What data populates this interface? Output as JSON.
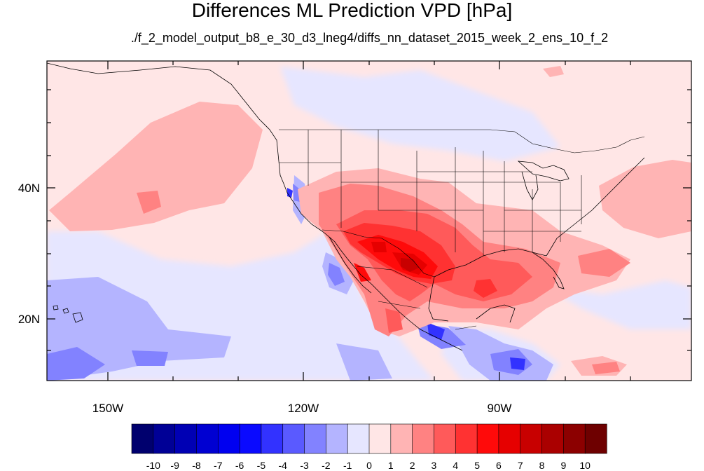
{
  "title": "Differences ML Prediction VPD [hPa]",
  "subtitle": "./f_2_model_output_b8_e_30_d3_lneg4/diffs_nn_dataset_2015_week_2_ens_10_f_2",
  "lon_labels": [
    "150W",
    "120W",
    "90W"
  ],
  "lat_labels": [
    "40N",
    "20N"
  ],
  "colorbar": {
    "labels": [
      "-10",
      "-9",
      "-8",
      "-7",
      "-6",
      "-5",
      "-4",
      "-3",
      "-2",
      "-1",
      "0",
      "1",
      "2",
      "3",
      "4",
      "5",
      "6",
      "7",
      "8",
      "9",
      "10"
    ],
    "colors": [
      "#00006e",
      "#000096",
      "#0000b4",
      "#0000d2",
      "#0000f0",
      "#0a0aff",
      "#3232ff",
      "#5a5aff",
      "#8282ff",
      "#b4b4ff",
      "#e6e6ff",
      "#ffe6e6",
      "#ffb4b4",
      "#ff8282",
      "#ff5a5a",
      "#ff3232",
      "#ff0a0a",
      "#e60000",
      "#c80000",
      "#aa0000",
      "#8c0000",
      "#6e0000"
    ]
  }
}
